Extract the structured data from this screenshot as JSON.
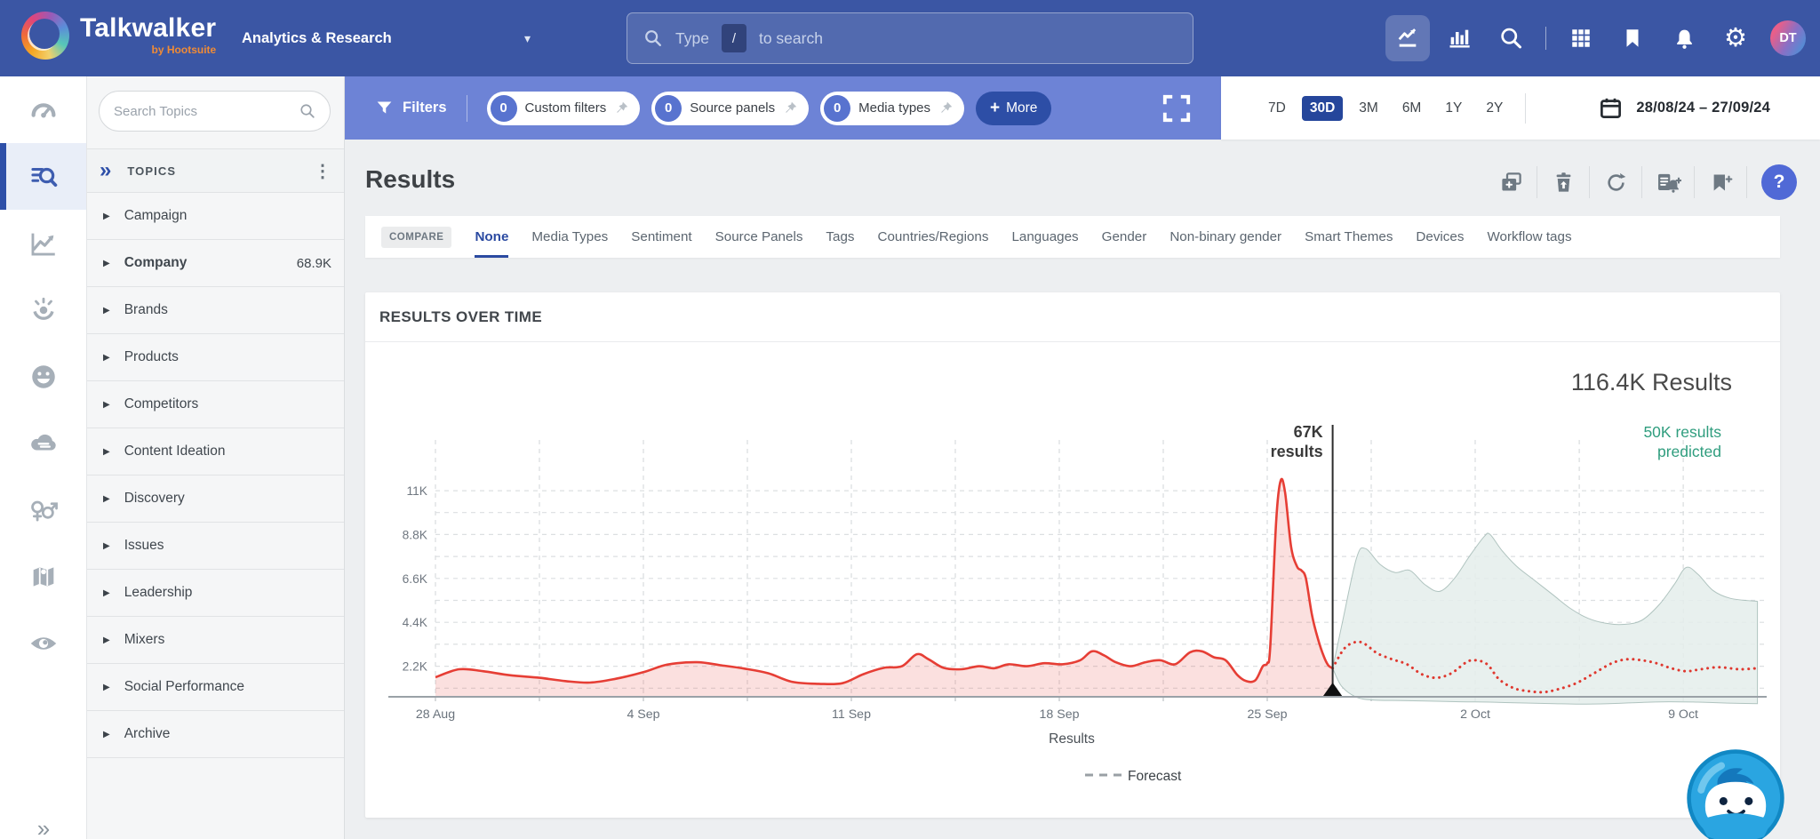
{
  "navbar": {
    "logo_title": "Talkwalker",
    "logo_subtitle": "by Hootsuite",
    "workspace": "Analytics & Research",
    "search": {
      "type_label": "Type",
      "slash_key": "/",
      "suffix": "to search"
    },
    "avatar_initials": "DT"
  },
  "icons": {
    "caret_down": "▾",
    "gear": "⚙",
    "kebab": "⋮",
    "double_chevron": "»",
    "expand_chevrons": "»",
    "row_triangle": "▶",
    "plus": "+",
    "help": "?"
  },
  "sidebar": {
    "search_placeholder": "Search Topics",
    "panel_title": "TOPICS",
    "topics": [
      {
        "label": "Campaign"
      },
      {
        "label": "Company",
        "value": "68.9K",
        "bold": true
      },
      {
        "label": "Brands"
      },
      {
        "label": "Products"
      },
      {
        "label": "Competitors"
      },
      {
        "label": "Content Ideation"
      },
      {
        "label": "Discovery"
      },
      {
        "label": "Issues"
      },
      {
        "label": "Leadership"
      },
      {
        "label": "Mixers"
      },
      {
        "label": "Social Performance"
      },
      {
        "label": "Archive"
      }
    ]
  },
  "filter_bar": {
    "filters_label": "Filters",
    "chips": [
      {
        "count": "0",
        "label": "Custom filters"
      },
      {
        "count": "0",
        "label": "Source panels"
      },
      {
        "count": "0",
        "label": "Media types"
      }
    ],
    "more_label": "More",
    "time_ranges": [
      "7D",
      "30D",
      "3M",
      "6M",
      "1Y",
      "2Y"
    ],
    "active_range": "30D",
    "date_range": "28/08/24 – 27/09/24"
  },
  "results_header": {
    "title": "Results"
  },
  "tabs": {
    "compare_label": "COMPARE",
    "active": "None",
    "items": [
      "None",
      "Media Types",
      "Sentiment",
      "Source Panels",
      "Tags",
      "Countries/Regions",
      "Languages",
      "Gender",
      "Non-binary gender",
      "Smart Themes",
      "Devices",
      "Workflow tags"
    ]
  },
  "chart_data": {
    "type": "area",
    "title": "RESULTS OVER TIME",
    "total_label": "116.4K Results",
    "xlabel": "Results",
    "legend": [
      {
        "label": "Forecast",
        "style": "dashed"
      }
    ],
    "x_ticks": [
      "28 Aug",
      "4 Sep",
      "11 Sep",
      "18 Sep",
      "25 Sep",
      "2 Oct",
      "9 Oct"
    ],
    "x_tick_days": [
      0,
      7,
      14,
      21,
      28,
      35,
      42
    ],
    "y_ticks": [
      "2.2K",
      "4.4K",
      "6.6K",
      "8.8K",
      "11K"
    ],
    "y_tick_values": [
      2.2,
      4.4,
      6.6,
      8.8,
      11
    ],
    "ylim": [
      0,
      12.6
    ],
    "grid": true,
    "marker": {
      "day": 30.2,
      "label_lines": [
        "67K",
        "results"
      ]
    },
    "prediction_label": {
      "lines": [
        "50K results",
        "predicted"
      ],
      "color": "#2f9d7e"
    },
    "series": [
      {
        "name": "Results",
        "kind": "history",
        "color": "#e63e35",
        "fill": "rgba(230,62,53,0.16)",
        "points": [
          [
            0,
            1.65
          ],
          [
            0.8,
            2.05
          ],
          [
            1.6,
            1.95
          ],
          [
            2.5,
            1.75
          ],
          [
            3.5,
            1.62
          ],
          [
            4.4,
            1.45
          ],
          [
            5.2,
            1.38
          ],
          [
            6,
            1.55
          ],
          [
            7,
            1.9
          ],
          [
            7.8,
            2.28
          ],
          [
            8.8,
            2.4
          ],
          [
            9.6,
            2.25
          ],
          [
            10.4,
            2.08
          ],
          [
            11.2,
            1.85
          ],
          [
            12,
            1.42
          ],
          [
            12.9,
            1.32
          ],
          [
            13.7,
            1.35
          ],
          [
            14.4,
            1.8
          ],
          [
            15.1,
            2.12
          ],
          [
            15.7,
            2.2
          ],
          [
            16.2,
            2.8
          ],
          [
            16.6,
            2.55
          ],
          [
            17.1,
            2.12
          ],
          [
            17.7,
            2.05
          ],
          [
            18.3,
            2.2
          ],
          [
            18.8,
            2.1
          ],
          [
            19.3,
            2.3
          ],
          [
            19.9,
            2.2
          ],
          [
            20.5,
            2.35
          ],
          [
            21.1,
            2.3
          ],
          [
            21.7,
            2.5
          ],
          [
            22.1,
            2.95
          ],
          [
            22.5,
            2.75
          ],
          [
            22.9,
            2.4
          ],
          [
            23.4,
            2.2
          ],
          [
            23.9,
            2.4
          ],
          [
            24.4,
            2.5
          ],
          [
            24.9,
            2.3
          ],
          [
            25.4,
            2.9
          ],
          [
            25.8,
            2.95
          ],
          [
            26.2,
            2.65
          ],
          [
            26.6,
            2.5
          ],
          [
            27,
            1.75
          ],
          [
            27.3,
            1.45
          ],
          [
            27.6,
            1.5
          ],
          [
            27.85,
            2.2
          ],
          [
            28,
            2.35
          ],
          [
            28.1,
            3.2
          ],
          [
            28.3,
            9.5
          ],
          [
            28.45,
            11.5
          ],
          [
            28.6,
            10.9
          ],
          [
            28.8,
            8.2
          ],
          [
            29,
            7.2
          ],
          [
            29.15,
            7.0
          ],
          [
            29.3,
            6.6
          ],
          [
            29.5,
            4.8
          ],
          [
            29.7,
            3.6
          ],
          [
            29.9,
            2.7
          ],
          [
            30.05,
            2.25
          ],
          [
            30.2,
            2.1
          ]
        ]
      },
      {
        "name": "Forecast",
        "kind": "forecast",
        "color": "#df382f",
        "style": "dotted",
        "points": [
          [
            30.2,
            2.1
          ],
          [
            30.6,
            3.1
          ],
          [
            31,
            3.42
          ],
          [
            31.3,
            3.3
          ],
          [
            31.7,
            2.85
          ],
          [
            32.2,
            2.55
          ],
          [
            32.7,
            2.3
          ],
          [
            33.2,
            1.8
          ],
          [
            33.7,
            1.62
          ],
          [
            34.2,
            1.85
          ],
          [
            34.7,
            2.4
          ],
          [
            35,
            2.5
          ],
          [
            35.4,
            2.3
          ],
          [
            35.8,
            1.55
          ],
          [
            36.3,
            1.1
          ],
          [
            36.8,
            0.95
          ],
          [
            37.3,
            0.9
          ],
          [
            37.8,
            1.05
          ],
          [
            38.4,
            1.35
          ],
          [
            39,
            1.85
          ],
          [
            39.6,
            2.35
          ],
          [
            40.1,
            2.55
          ],
          [
            40.6,
            2.5
          ],
          [
            41.1,
            2.35
          ],
          [
            41.6,
            2.1
          ],
          [
            42.1,
            1.95
          ],
          [
            42.6,
            2.05
          ],
          [
            43.2,
            2.15
          ],
          [
            43.9,
            2.05
          ],
          [
            44.5,
            2.1
          ]
        ]
      },
      {
        "name": "Forecast confidence band",
        "kind": "band",
        "fill": "#e4edeb",
        "stroke": "#9fb6b1",
        "upper": [
          [
            30.2,
            2.1
          ],
          [
            30.5,
            4.2
          ],
          [
            31,
            7.6
          ],
          [
            31.3,
            8.1
          ],
          [
            31.8,
            7.3
          ],
          [
            32.3,
            6.9
          ],
          [
            32.8,
            7.0
          ],
          [
            33.3,
            6.3
          ],
          [
            33.8,
            5.95
          ],
          [
            34.3,
            6.6
          ],
          [
            34.8,
            7.7
          ],
          [
            35.3,
            8.7
          ],
          [
            35.5,
            8.8
          ],
          [
            35.9,
            8.0
          ],
          [
            36.4,
            7.2
          ],
          [
            37,
            6.5
          ],
          [
            37.6,
            5.8
          ],
          [
            38.2,
            5.1
          ],
          [
            38.8,
            4.6
          ],
          [
            39.4,
            4.35
          ],
          [
            40,
            4.3
          ],
          [
            40.6,
            4.5
          ],
          [
            41.2,
            5.3
          ],
          [
            41.7,
            6.3
          ],
          [
            42.1,
            7.15
          ],
          [
            42.5,
            6.8
          ],
          [
            43,
            6.0
          ],
          [
            43.6,
            5.6
          ],
          [
            44.5,
            5.45
          ]
        ],
        "lower": [
          [
            30.2,
            2.1
          ],
          [
            30.5,
            1.2
          ],
          [
            31,
            0.65
          ],
          [
            31.6,
            0.5
          ],
          [
            32.5,
            0.48
          ],
          [
            33.5,
            0.45
          ],
          [
            34.5,
            0.42
          ],
          [
            35.5,
            0.4
          ],
          [
            36.5,
            0.36
          ],
          [
            37.5,
            0.33
          ],
          [
            38.5,
            0.3
          ],
          [
            39.5,
            0.32
          ],
          [
            40.5,
            0.38
          ],
          [
            41.5,
            0.42
          ],
          [
            42.5,
            0.4
          ],
          [
            43.5,
            0.35
          ],
          [
            44.5,
            0.32
          ]
        ]
      }
    ]
  }
}
